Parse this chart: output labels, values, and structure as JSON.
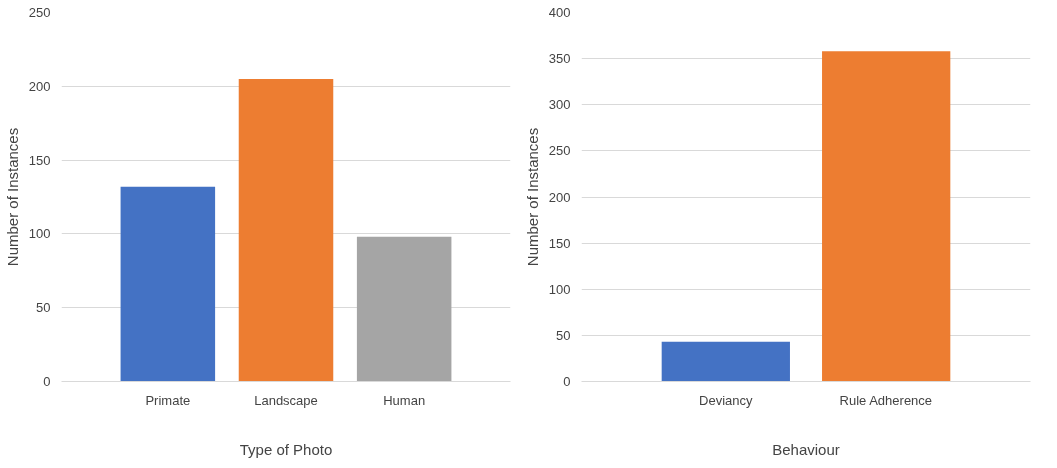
{
  "chart_data": [
    {
      "type": "bar",
      "xlabel": "Type of Photo",
      "ylabel": "Number of Instances",
      "categories": [
        "Primate",
        "Landscape",
        "Human"
      ],
      "values": [
        132,
        205,
        98
      ],
      "colors": [
        "#4472c4",
        "#ed7d31",
        "#a5a5a5"
      ],
      "ylim": [
        0,
        250
      ],
      "yticks": [
        0,
        50,
        100,
        150,
        200,
        250
      ],
      "grid": "y"
    },
    {
      "type": "bar",
      "xlabel": "Behaviour",
      "ylabel": "Number of Instances",
      "categories": [
        "Deviancy",
        "Rule Adherence"
      ],
      "values": [
        43,
        358
      ],
      "colors": [
        "#4472c4",
        "#ed7d31"
      ],
      "ylim": [
        0,
        400
      ],
      "yticks": [
        0,
        50,
        100,
        150,
        200,
        250,
        300,
        350,
        400
      ],
      "grid": "y"
    }
  ]
}
